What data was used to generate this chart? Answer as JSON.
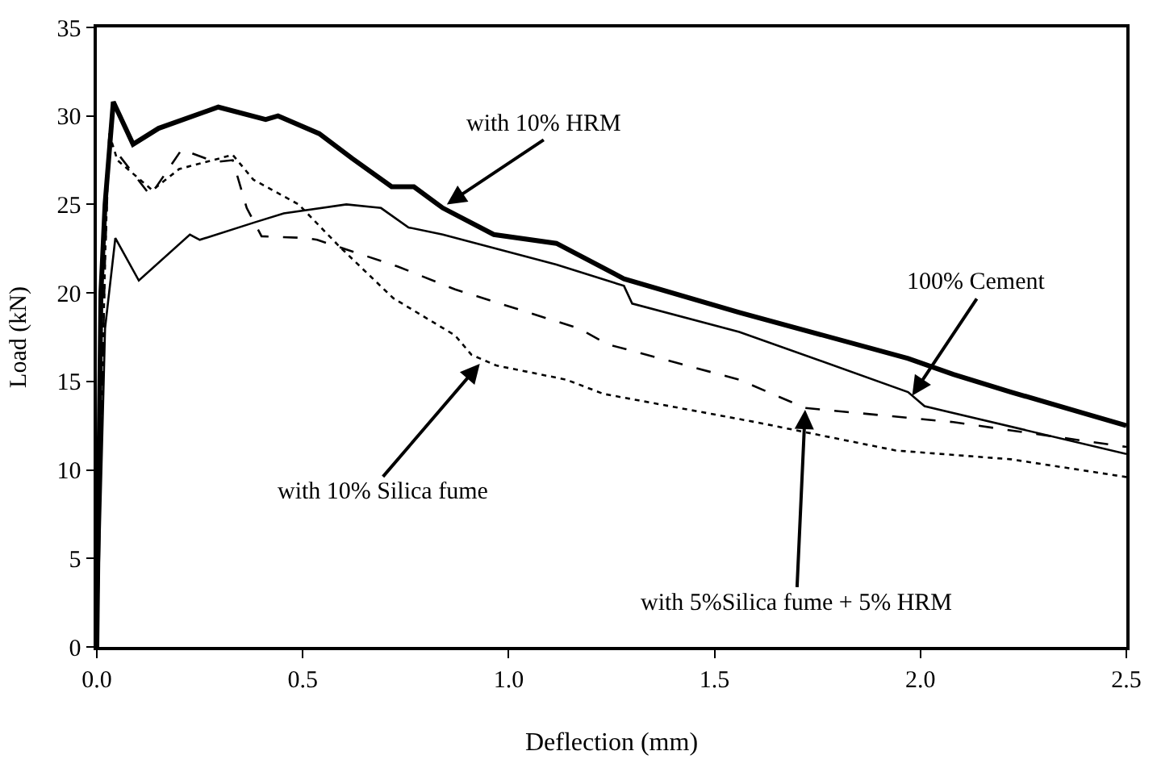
{
  "chart_data": {
    "type": "line",
    "xlabel": "Deflection (mm)",
    "ylabel": "Load (kN)",
    "xlim": [
      0,
      2.5
    ],
    "xticks": [
      {
        "value": 0,
        "label": "0.0"
      },
      0.5,
      {
        "value": 1,
        "label": "1.0"
      },
      1.5,
      {
        "value": 2,
        "label": "2.0"
      },
      2.5
    ],
    "ylim": [
      0,
      35
    ],
    "yticks": [
      0,
      5,
      10,
      15,
      20,
      25,
      30,
      35
    ],
    "legend": false,
    "marker": "none",
    "series": [
      {
        "color": "#000000",
        "line_style": "solid",
        "x": [
          0,
          0.01,
          0.02,
          0.04,
          0.088,
          0.15,
          0.295,
          0.41,
          0.44,
          0.54,
          0.62,
          0.716,
          0.77,
          0.84,
          0.964,
          1.116,
          1.28,
          1.56,
          1.97,
          2.08,
          2.22,
          2.5
        ],
        "values": [
          0,
          20,
          25,
          30.8,
          28.4,
          29.3,
          30.5,
          29.8,
          30.0,
          29.0,
          27.6,
          26.0,
          26.0,
          24.8,
          23.3,
          22.8,
          20.8,
          18.9,
          16.3,
          15.4,
          14.4,
          12.5
        ]
      },
      {
        "color": "#000000",
        "line_style": "solid",
        "x": [
          0,
          0.02,
          0.045,
          0.102,
          0.226,
          0.25,
          0.385,
          0.454,
          0.606,
          0.69,
          0.757,
          0.84,
          1.116,
          1.28,
          1.3,
          1.56,
          1.97,
          2.01,
          2.5
        ],
        "values": [
          0,
          18,
          23.1,
          20.7,
          23.3,
          23.0,
          24.0,
          24.5,
          25.0,
          24.8,
          23.7,
          23.3,
          21.6,
          20.4,
          19.4,
          17.8,
          14.4,
          13.6,
          10.9
        ]
      },
      {
        "color": "#000000",
        "line_style": "dotted",
        "x": [
          0,
          0.02,
          0.03,
          0.05,
          0.135,
          0.2,
          0.33,
          0.38,
          0.49,
          0.59,
          0.72,
          0.87,
          0.91,
          0.97,
          1.14,
          1.23,
          1.6,
          1.94,
          2.22,
          2.5
        ],
        "values": [
          0,
          22,
          29.0,
          27.5,
          25.8,
          27.0,
          27.8,
          26.4,
          25.0,
          22.6,
          19.7,
          17.6,
          16.5,
          15.9,
          15.1,
          14.3,
          12.7,
          11.1,
          10.6,
          9.6
        ]
      },
      {
        "color": "#000000",
        "line_style": "dashed",
        "x": [
          0,
          0.02,
          0.03,
          0.13,
          0.206,
          0.288,
          0.33,
          0.364,
          0.4,
          0.51,
          0.535,
          0.73,
          0.87,
          1.17,
          1.24,
          1.56,
          1.72,
          2.08,
          2.5
        ],
        "values": [
          0,
          22,
          28.5,
          25.5,
          28.1,
          27.4,
          27.5,
          24.8,
          23.2,
          23.1,
          23.0,
          21.5,
          20.2,
          18.0,
          17.1,
          15.1,
          13.5,
          12.7,
          11.3
        ]
      }
    ],
    "annotations": [
      {
        "text": "with 10% HRM",
        "x": 0.85,
        "y": 25.0
      },
      {
        "text": "100% Cement",
        "x": 1.98,
        "y": 14.2
      },
      {
        "text": "with 10% Silica fume",
        "x": 0.93,
        "y": 16.0
      },
      {
        "text": "with 5%Silica fume + 5% HRM",
        "x": 1.72,
        "y": 13.4
      }
    ]
  }
}
